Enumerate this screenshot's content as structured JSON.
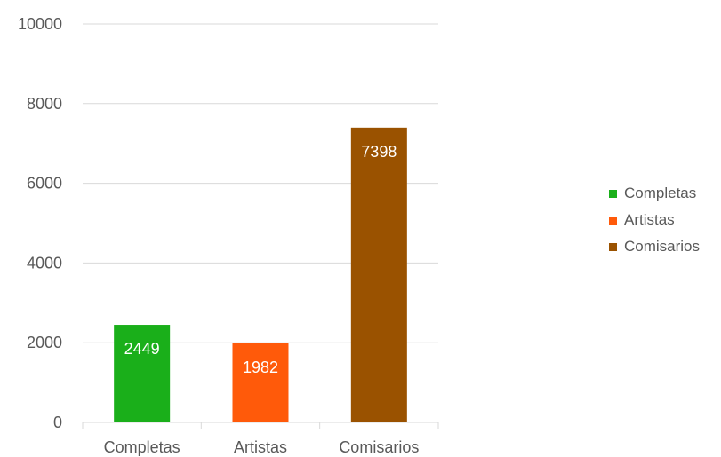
{
  "chart_data": {
    "type": "bar",
    "categories": [
      "Completas",
      "Artistas",
      "Comisarios"
    ],
    "values": [
      2449,
      1982,
      7398
    ],
    "colors": [
      "#1aaf1a",
      "#ff5a0a",
      "#9a5200"
    ],
    "ylim": [
      0,
      10000
    ],
    "yticks": [
      0,
      2000,
      4000,
      6000,
      8000,
      10000
    ],
    "title": "",
    "xlabel": "",
    "ylabel": "",
    "grid": true,
    "legend_position": "right",
    "legend": [
      "Completas",
      "Artistas",
      "Comisarios"
    ]
  }
}
